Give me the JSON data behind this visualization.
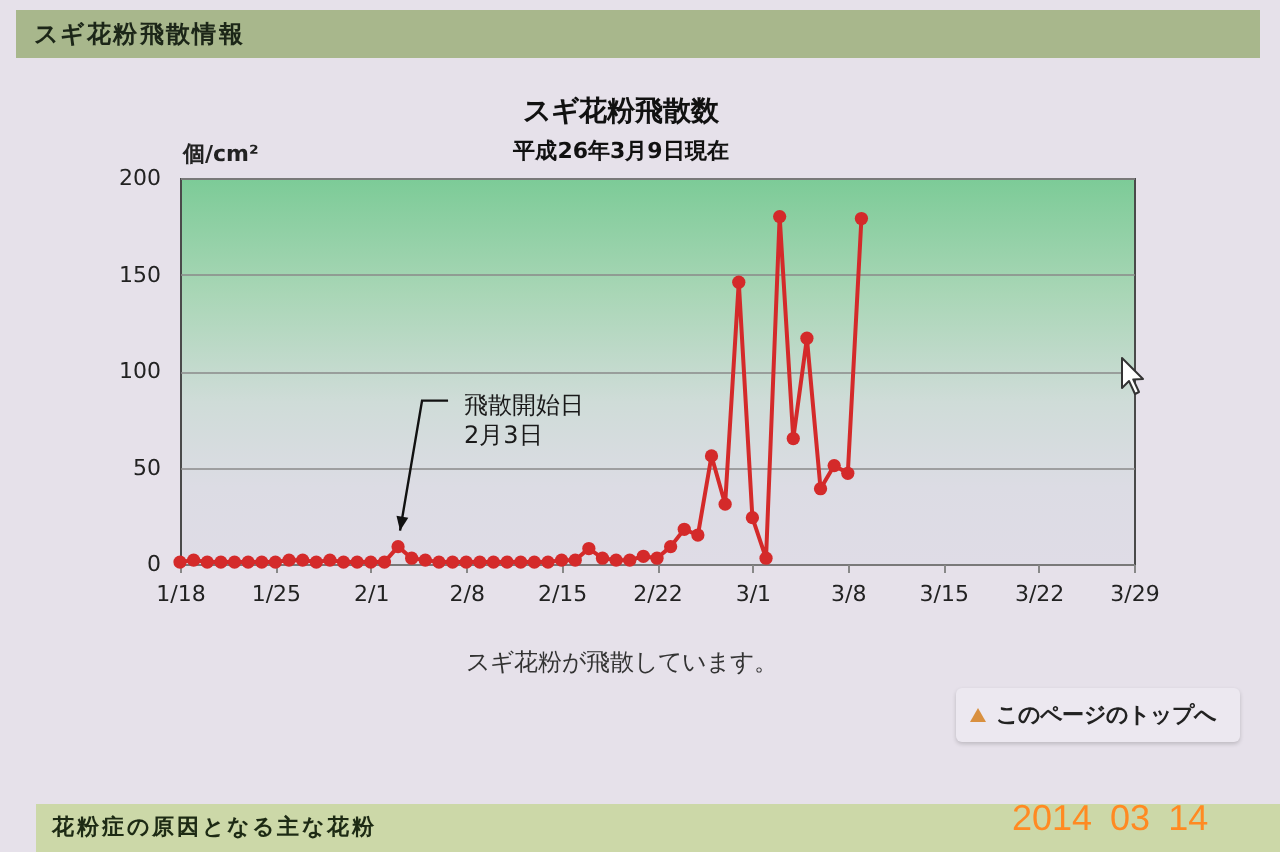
{
  "chart_data": {
    "type": "line",
    "title": "スギ花粉飛散数",
    "subtitle": "平成26年3月9日現在",
    "ylabel": "個/cm²",
    "x": [
      "2014-01-18",
      "2014-01-19",
      "2014-01-20",
      "2014-01-21",
      "2014-01-22",
      "2014-01-23",
      "2014-01-24",
      "2014-01-25",
      "2014-01-26",
      "2014-01-27",
      "2014-01-28",
      "2014-01-29",
      "2014-01-30",
      "2014-01-31",
      "2014-02-01",
      "2014-02-02",
      "2014-02-03",
      "2014-02-04",
      "2014-02-05",
      "2014-02-06",
      "2014-02-07",
      "2014-02-08",
      "2014-02-09",
      "2014-02-10",
      "2014-02-11",
      "2014-02-12",
      "2014-02-13",
      "2014-02-14",
      "2014-02-15",
      "2014-02-16",
      "2014-02-17",
      "2014-02-18",
      "2014-02-19",
      "2014-02-20",
      "2014-02-21",
      "2014-02-22",
      "2014-02-23",
      "2014-02-24",
      "2014-02-25",
      "2014-02-26",
      "2014-02-27",
      "2014-02-28",
      "2014-03-01",
      "2014-03-02",
      "2014-03-03",
      "2014-03-04",
      "2014-03-05",
      "2014-03-06",
      "2014-03-07",
      "2014-03-08",
      "2014-03-09"
    ],
    "values": [
      1,
      2,
      1,
      1,
      1,
      1,
      1,
      1,
      2,
      2,
      1,
      2,
      1,
      1,
      1,
      1,
      9,
      3,
      2,
      1,
      1,
      1,
      1,
      1,
      1,
      1,
      1,
      1,
      2,
      2,
      8,
      3,
      2,
      2,
      4,
      3,
      9,
      18,
      15,
      56,
      31,
      146,
      24,
      3,
      180,
      65,
      117,
      39,
      51,
      47,
      179
    ],
    "color": "#d42a2a",
    "xlim": [
      "2014-01-18",
      "2014-03-29"
    ],
    "xticks": [
      {
        "value": "2014-01-18",
        "label": "1/18"
      },
      {
        "value": "2014-01-25",
        "label": "1/25"
      },
      {
        "value": "2014-02-01",
        "label": "2/1"
      },
      {
        "value": "2014-02-08",
        "label": "2/8"
      },
      {
        "value": "2014-02-15",
        "label": "2/15"
      },
      {
        "value": "2014-02-22",
        "label": "2/22"
      },
      {
        "value": "2014-03-01",
        "label": "3/1"
      },
      {
        "value": "2014-03-08",
        "label": "3/8"
      },
      {
        "value": "2014-03-15",
        "label": "3/15"
      },
      {
        "value": "2014-03-22",
        "label": "3/22"
      },
      {
        "value": "2014-03-29",
        "label": "3/29"
      }
    ],
    "ylim": [
      0,
      200
    ],
    "yticks": [
      0,
      50,
      100,
      150,
      200
    ],
    "grid": "y",
    "marker": "circle",
    "line_style": "solid",
    "annotations": [
      "スギ花粉飛散情報",
      {
        "text": "飛散開始日\n2月3日",
        "x": "2014-02-03",
        "y": 9
      },
      "スギ花粉が飛散しています。",
      "このページのトップへ",
      "花粉症の原因となる主な花粉",
      "2014 03 14"
    ]
  }
}
